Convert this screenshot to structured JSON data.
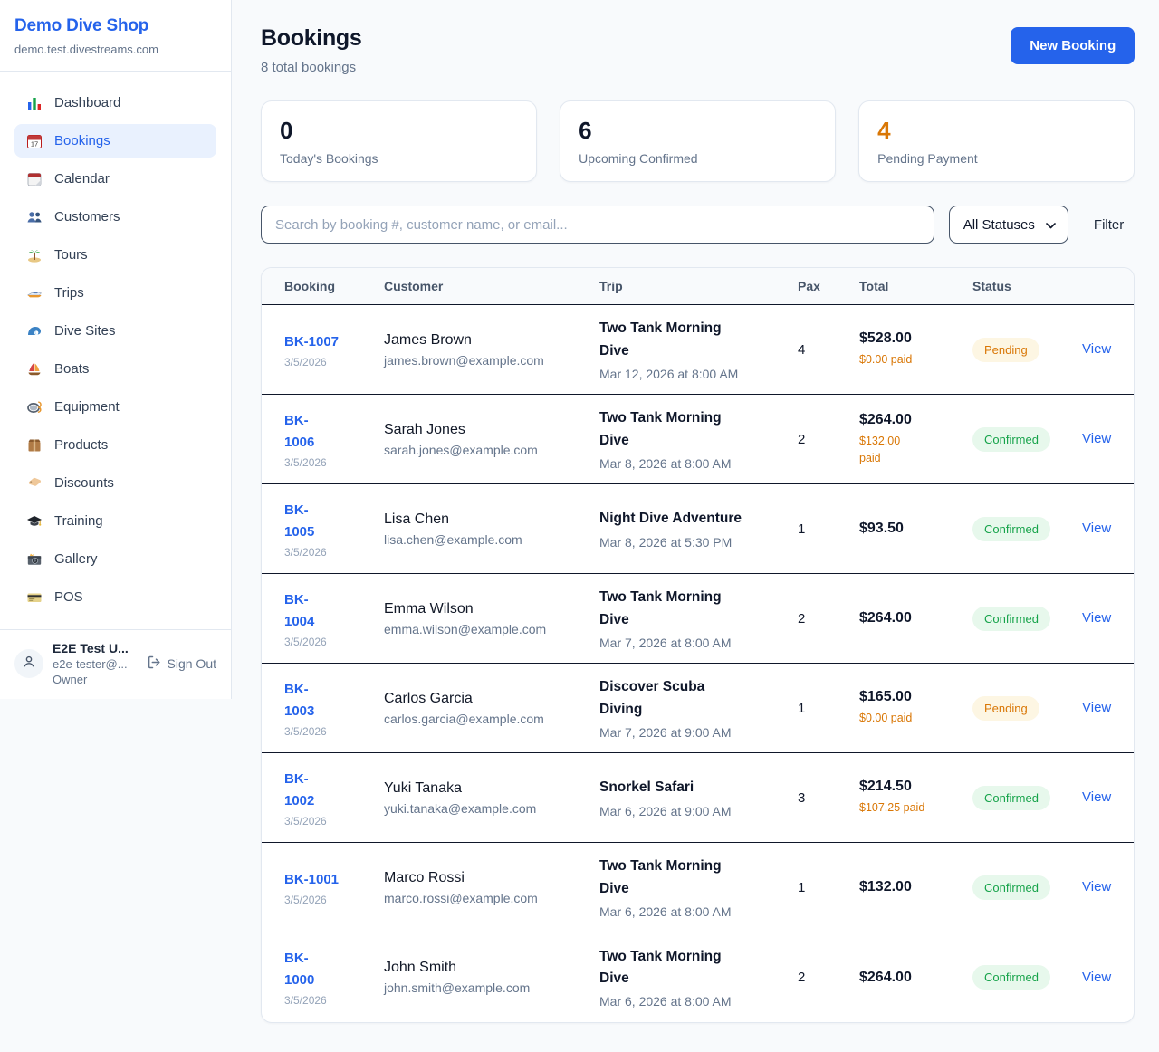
{
  "colors": {
    "accent": "#2563eb",
    "pending": "#d97706",
    "confirmed": "#16a34a"
  },
  "sidebar": {
    "brand": "Demo Dive Shop",
    "domain": "demo.test.divestreams.com",
    "items": [
      {
        "icon": "bar-chart-icon",
        "label": "Dashboard",
        "active": false
      },
      {
        "icon": "calendar-icon",
        "label": "Bookings",
        "active": true
      },
      {
        "icon": "tear-calendar-icon",
        "label": "Calendar",
        "active": false
      },
      {
        "icon": "people-icon",
        "label": "Customers",
        "active": false
      },
      {
        "icon": "island-icon",
        "label": "Tours",
        "active": false
      },
      {
        "icon": "speedboat-icon",
        "label": "Trips",
        "active": false
      },
      {
        "icon": "wave-icon",
        "label": "Dive Sites",
        "active": false
      },
      {
        "icon": "sailboat-icon",
        "label": "Boats",
        "active": false
      },
      {
        "icon": "dive-mask-icon",
        "label": "Equipment",
        "active": false
      },
      {
        "icon": "package-icon",
        "label": "Products",
        "active": false
      },
      {
        "icon": "tag-icon",
        "label": "Discounts",
        "active": false
      },
      {
        "icon": "grad-cap-icon",
        "label": "Training",
        "active": false
      },
      {
        "icon": "camera-icon",
        "label": "Gallery",
        "active": false
      },
      {
        "icon": "credit-card-icon",
        "label": "POS",
        "active": false
      }
    ],
    "user": {
      "name": "E2E Test U...",
      "email": "e2e-tester@...",
      "role": "Owner",
      "sign_out": "Sign Out"
    }
  },
  "header": {
    "title": "Bookings",
    "subtitle": "8 total bookings",
    "new_booking": "New Booking"
  },
  "stats": [
    {
      "value": "0",
      "label": "Today's Bookings",
      "highlight": false
    },
    {
      "value": "6",
      "label": "Upcoming Confirmed",
      "highlight": false
    },
    {
      "value": "4",
      "label": "Pending Payment",
      "highlight": true
    }
  ],
  "filters": {
    "search_placeholder": "Search by booking #, customer name, or email...",
    "status_value": "All Statuses",
    "filter_label": "Filter"
  },
  "table": {
    "columns": [
      "Booking",
      "Customer",
      "Trip",
      "Pax",
      "Total",
      "Status"
    ],
    "rows": [
      {
        "id": "BK-1007",
        "date": "3/5/2026",
        "name": "James Brown",
        "email": "james.brown@example.com",
        "trip": "Two Tank Morning\nDive",
        "trip_date": "Mar 12, 2026 at 8:00 AM",
        "pax": "4",
        "total": "$528.00",
        "paid": "$0.00 paid",
        "status": "Pending",
        "view": "View"
      },
      {
        "id": "BK-\n1006",
        "date": "3/5/2026",
        "name": "Sarah Jones",
        "email": "sarah.jones@example.com",
        "trip": "Two Tank Morning\nDive",
        "trip_date": "Mar 8, 2026 at 8:00 AM",
        "pax": "2",
        "total": "$264.00",
        "paid": "$132.00\npaid",
        "status": "Confirmed",
        "view": "View"
      },
      {
        "id": "BK-\n1005",
        "date": "3/5/2026",
        "name": "Lisa Chen",
        "email": "lisa.chen@example.com",
        "trip": "Night Dive Adventure",
        "trip_date": "Mar 8, 2026 at 5:30 PM",
        "pax": "1",
        "total": "$93.50",
        "paid": "",
        "status": "Confirmed",
        "view": "View"
      },
      {
        "id": "BK-\n1004",
        "date": "3/5/2026",
        "name": "Emma Wilson",
        "email": "emma.wilson@example.com",
        "trip": "Two Tank Morning\nDive",
        "trip_date": "Mar 7, 2026 at 8:00 AM",
        "pax": "2",
        "total": "$264.00",
        "paid": "",
        "status": "Confirmed",
        "view": "View"
      },
      {
        "id": "BK-\n1003",
        "date": "3/5/2026",
        "name": "Carlos Garcia",
        "email": "carlos.garcia@example.com",
        "trip": "Discover Scuba\nDiving",
        "trip_date": "Mar 7, 2026 at 9:00 AM",
        "pax": "1",
        "total": "$165.00",
        "paid": "$0.00 paid",
        "status": "Pending",
        "view": "View"
      },
      {
        "id": "BK-\n1002",
        "date": "3/5/2026",
        "name": "Yuki Tanaka",
        "email": "yuki.tanaka@example.com",
        "trip": "Snorkel Safari",
        "trip_date": "Mar 6, 2026 at 9:00 AM",
        "pax": "3",
        "total": "$214.50",
        "paid": "$107.25 paid",
        "status": "Confirmed",
        "view": "View"
      },
      {
        "id": "BK-1001",
        "date": "3/5/2026",
        "name": "Marco Rossi",
        "email": "marco.rossi@example.com",
        "trip": "Two Tank Morning\nDive",
        "trip_date": "Mar 6, 2026 at 8:00 AM",
        "pax": "1",
        "total": "$132.00",
        "paid": "",
        "status": "Confirmed",
        "view": "View"
      },
      {
        "id": "BK-\n1000",
        "date": "3/5/2026",
        "name": "John Smith",
        "email": "john.smith@example.com",
        "trip": "Two Tank Morning\nDive",
        "trip_date": "Mar 6, 2026 at 8:00 AM",
        "pax": "2",
        "total": "$264.00",
        "paid": "",
        "status": "Confirmed",
        "view": "View"
      }
    ]
  }
}
